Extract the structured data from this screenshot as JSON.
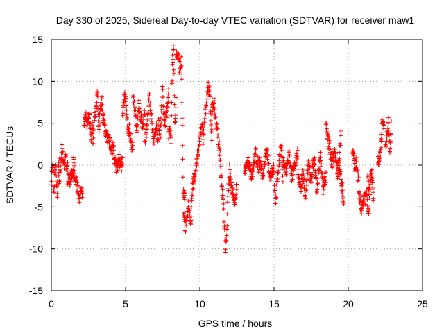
{
  "chart_data": {
    "type": "scatter",
    "title": "Day 330 of 2025, Sidereal Day-to-day VTEC variation (SDTVAR) for receiver maw1",
    "xlabel": "GPS time / hours",
    "ylabel": "SDTVAR / TECUs",
    "xlim": [
      0,
      25
    ],
    "ylim": [
      -15,
      15
    ],
    "xticks": [
      0,
      5,
      10,
      15,
      20,
      25
    ],
    "yticks": [
      -15,
      -10,
      -5,
      0,
      5,
      10,
      15
    ],
    "grid": true,
    "marker": "+",
    "color": "#ff0000",
    "segments": [
      {
        "t0": 0.0,
        "t1": 0.55,
        "v": [
          -2,
          0.5,
          -3.5,
          -1,
          -0.5,
          -3.8,
          0.2,
          -2.5
        ]
      },
      {
        "t0": 0.55,
        "t1": 1.1,
        "v": [
          0.5,
          -0.8,
          1.8,
          1.2,
          0.2,
          1.5,
          -0.3,
          0.8
        ]
      },
      {
        "t0": 1.1,
        "t1": 1.5,
        "v": [
          -1.5,
          -2,
          -1.2,
          -0.8
        ]
      },
      {
        "t0": 1.5,
        "t1": 2.1,
        "v": [
          0.2,
          -1.5,
          -2.5,
          -3.8,
          -2.8,
          -3.2
        ]
      },
      {
        "t0": 2.2,
        "t1": 2.8,
        "v": [
          5.2,
          5.8,
          4.5,
          6.2,
          3.5,
          4.8
        ]
      },
      {
        "t0": 2.8,
        "t1": 3.5,
        "v": [
          2,
          5.5,
          6.8,
          8.6,
          4.2,
          6.5,
          7.8,
          5
        ]
      },
      {
        "t0": 3.5,
        "t1": 4.2,
        "v": [
          6,
          4.2,
          3.2,
          2.8,
          1.8,
          2.5
        ]
      },
      {
        "t0": 4.2,
        "t1": 4.8,
        "v": [
          1.2,
          0.2,
          -0.5,
          0.8,
          -0.2,
          0.5
        ]
      },
      {
        "t0": 4.8,
        "t1": 5.5,
        "v": [
          5.8,
          8.2,
          7.2,
          3.5,
          4.5,
          2.8,
          1.8
        ]
      },
      {
        "t0": 5.5,
        "t1": 6.3,
        "v": [
          8.5,
          6.5,
          4.2,
          7.2,
          5.5,
          3.8,
          6.8
        ]
      },
      {
        "t0": 6.3,
        "t1": 7.2,
        "v": [
          2.5,
          4.8,
          8.2,
          5.5,
          3.2,
          4.5,
          2.8
        ]
      },
      {
        "t0": 7.2,
        "t1": 7.9,
        "v": [
          5.2,
          3.8,
          9.2,
          4.5,
          6.2,
          8.5
        ]
      },
      {
        "t0": 7.9,
        "t1": 8.4,
        "v": [
          3.8,
          4.5,
          2.5,
          12.5,
          13.8,
          5.2,
          7.5
        ]
      },
      {
        "t0": 8.4,
        "t1": 9.0,
        "v": [
          12.8,
          13.5,
          11.5,
          12.2,
          -3.2,
          -3.5
        ]
      },
      {
        "t0": 8.9,
        "t1": 9.5,
        "v": [
          -5.5,
          -7.5,
          -6.2,
          -4.8,
          -6.8,
          -3.5
        ]
      },
      {
        "t0": 9.5,
        "t1": 10.2,
        "v": [
          -2.5,
          -1.5,
          0.5,
          2.2,
          3.8,
          4.5
        ]
      },
      {
        "t0": 10.2,
        "t1": 10.8,
        "v": [
          2.2,
          5.5,
          7.5,
          9.8,
          8.2,
          3.5
        ]
      },
      {
        "t0": 10.8,
        "t1": 11.5,
        "v": [
          6.5,
          7.8,
          5.5,
          3.5,
          1.2,
          -2.5
        ]
      },
      {
        "t0": 11.5,
        "t1": 12.0,
        "v": [
          -3.2,
          -4.2,
          -9.8,
          -9.5,
          -2.8,
          -1.5
        ]
      },
      {
        "t0": 12.0,
        "t1": 12.5,
        "v": [
          -0.5,
          -2.5,
          -3.5,
          -4.2,
          -1.8
        ]
      },
      {
        "t0": 13.0,
        "t1": 14.0,
        "v": [
          -0.8,
          0.2,
          -1.2,
          1.5,
          -0.5
        ]
      },
      {
        "t0": 14.0,
        "t1": 15.0,
        "v": [
          0.5,
          -1,
          1.8,
          -1.5,
          -0.2
        ]
      },
      {
        "t0": 15.0,
        "t1": 15.6,
        "v": [
          -2.5,
          -4.5,
          -1.2,
          0.5,
          1.8,
          -2.2
        ]
      },
      {
        "t0": 15.6,
        "t1": 16.6,
        "v": [
          0.5,
          -0.8,
          1.2,
          -1.5,
          0.2,
          1.5
        ]
      },
      {
        "t0": 16.6,
        "t1": 17.5,
        "v": [
          -0.5,
          -2.8,
          -1.2,
          -3.5,
          0.5,
          -2.2
        ]
      },
      {
        "t0": 17.5,
        "t1": 18.5,
        "v": [
          -1.5,
          0.8,
          -3,
          1.2,
          -2.8,
          -1.2
        ]
      },
      {
        "t0": 18.5,
        "t1": 19.5,
        "v": [
          5,
          2.5,
          0.2,
          1.5,
          -1.2,
          3.5
        ]
      },
      {
        "t0": 19.3,
        "t1": 19.7,
        "v": [
          0.5,
          -1.8,
          -4
        ]
      },
      {
        "t0": 20.3,
        "t1": 20.7,
        "v": [
          1.8,
          -0.5,
          0.2,
          -2.2
        ]
      },
      {
        "t0": 20.7,
        "t1": 21.4,
        "v": [
          -3.2,
          -5.5,
          -4.2,
          -3.8,
          -5.8
        ]
      },
      {
        "t0": 21.3,
        "t1": 21.7,
        "v": [
          -1.5,
          -3.5,
          -0.5,
          -4.5
        ]
      },
      {
        "t0": 22.0,
        "t1": 22.4,
        "v": [
          0.2,
          0.8,
          4.5,
          5.2
        ]
      },
      {
        "t0": 22.5,
        "t1": 22.9,
        "v": [
          2.2,
          3.5,
          5.5,
          1.8,
          4.5
        ]
      }
    ]
  }
}
